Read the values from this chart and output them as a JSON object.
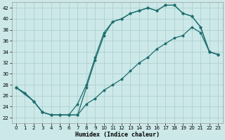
{
  "xlabel": "Humidex (Indice chaleur)",
  "xlim": [
    -0.5,
    23.5
  ],
  "ylim": [
    21.0,
    43.0
  ],
  "xticks": [
    0,
    1,
    2,
    3,
    4,
    5,
    6,
    7,
    8,
    9,
    10,
    11,
    12,
    13,
    14,
    15,
    16,
    17,
    18,
    19,
    20,
    21,
    22,
    23
  ],
  "yticks": [
    22,
    24,
    26,
    28,
    30,
    32,
    34,
    36,
    38,
    40,
    42
  ],
  "bg_color": "#cce8e8",
  "grid_color": "#aacccc",
  "line_color": "#1e6e6e",
  "line1_x": [
    0,
    1,
    2,
    3,
    4,
    5,
    6,
    7,
    8,
    9,
    10,
    11,
    12,
    13,
    14,
    15,
    16,
    17,
    18,
    19,
    20,
    21,
    22,
    23
  ],
  "line1_y": [
    27.5,
    26.5,
    25.0,
    23.0,
    22.5,
    22.5,
    22.5,
    22.5,
    27.5,
    32.5,
    37.0,
    39.5,
    40.0,
    41.0,
    41.5,
    42.0,
    41.5,
    42.5,
    42.5,
    41.0,
    40.5,
    38.5,
    34.0,
    33.5
  ],
  "line2_x": [
    0,
    2,
    3,
    4,
    5,
    6,
    7,
    8,
    9,
    10,
    11,
    12,
    13,
    14,
    15,
    16,
    17,
    18,
    19,
    20,
    21,
    22,
    23
  ],
  "line2_y": [
    27.5,
    25.0,
    23.0,
    22.5,
    22.5,
    22.5,
    24.5,
    28.0,
    33.0,
    37.5,
    39.5,
    40.0,
    41.0,
    41.5,
    42.0,
    41.5,
    42.5,
    42.5,
    41.0,
    40.5,
    38.5,
    34.0,
    33.5
  ],
  "line3_x": [
    0,
    1,
    2,
    3,
    4,
    5,
    6,
    7,
    8,
    9,
    10,
    11,
    12,
    13,
    14,
    15,
    16,
    17,
    18,
    19,
    20,
    21,
    22,
    23
  ],
  "line3_y": [
    27.5,
    26.5,
    25.0,
    23.0,
    22.5,
    22.5,
    22.5,
    22.5,
    24.5,
    25.5,
    27.0,
    28.0,
    29.0,
    30.5,
    32.0,
    33.0,
    34.5,
    35.5,
    36.5,
    37.0,
    38.5,
    37.5,
    34.0,
    33.5
  ]
}
